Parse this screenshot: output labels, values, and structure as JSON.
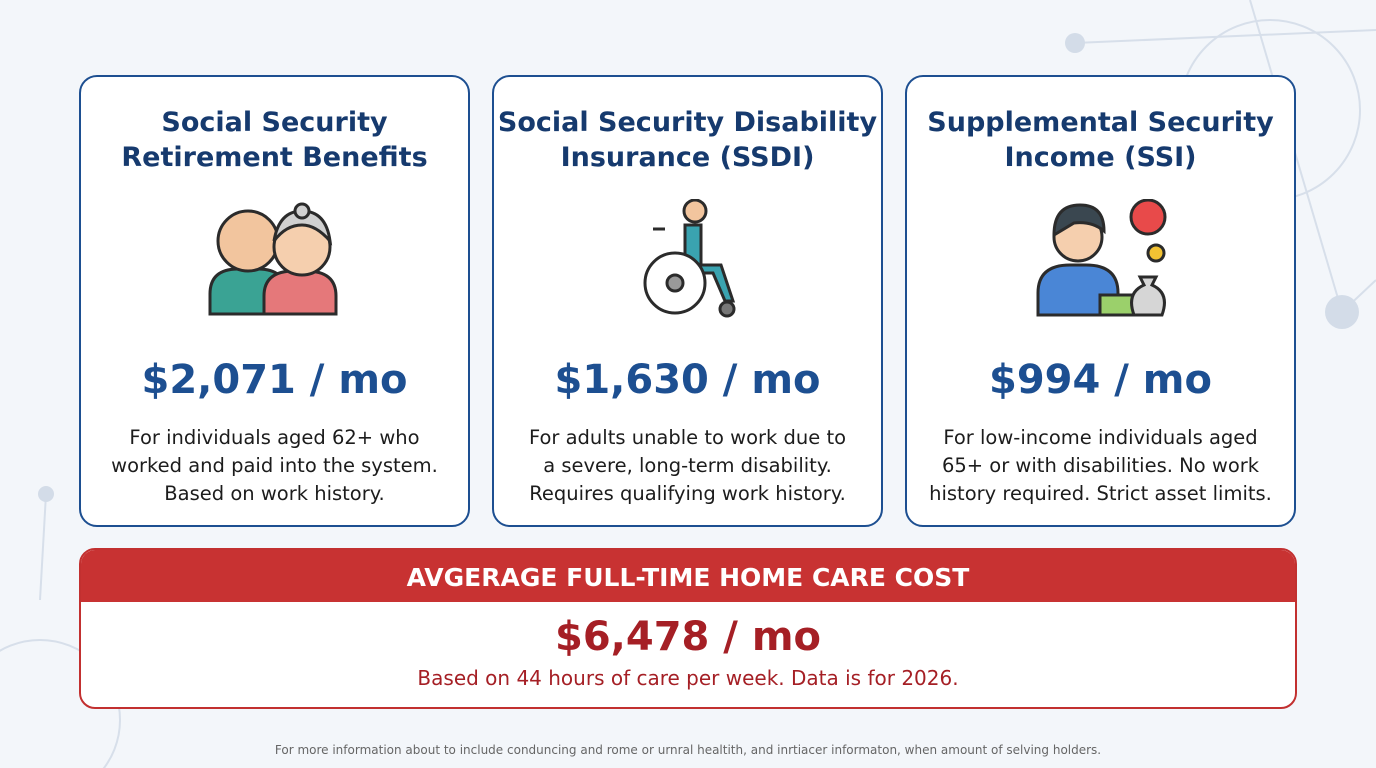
{
  "cards": [
    {
      "title_lines": [
        "Social Security",
        "Retirement Benefits"
      ],
      "amount": "$2,071 / mo",
      "description_lines": [
        "For individuals aged 62+ who",
        "worked and paid into the system.",
        "Based on work history."
      ]
    },
    {
      "title_lines": [
        "Social Security Disability",
        "Insurance (SSDI)"
      ],
      "amount": "$1,630 / mo",
      "description_lines": [
        "For adults unable to work due to",
        "a severe, long-term disability.",
        "Requires qualifying work history."
      ]
    },
    {
      "title_lines": [
        "Supplemental Security",
        "Income (SSI)"
      ],
      "amount": "$994 / mo",
      "description_lines": [
        "For low-income individuals aged",
        "65+ or with disabilities. No work",
        "history required. Strict asset limits."
      ]
    }
  ],
  "banner": {
    "heading": "AVGERAGE FULL-TIME HOME CARE COST",
    "amount": "$6,478 / mo",
    "note": "Based on 44 hours of care per week. Data is for 2026."
  },
  "footer": {
    "text": "For more information about to include conduncing and rome or urnral healtith, and inrtiacer informaton, when amount of selving holders."
  }
}
